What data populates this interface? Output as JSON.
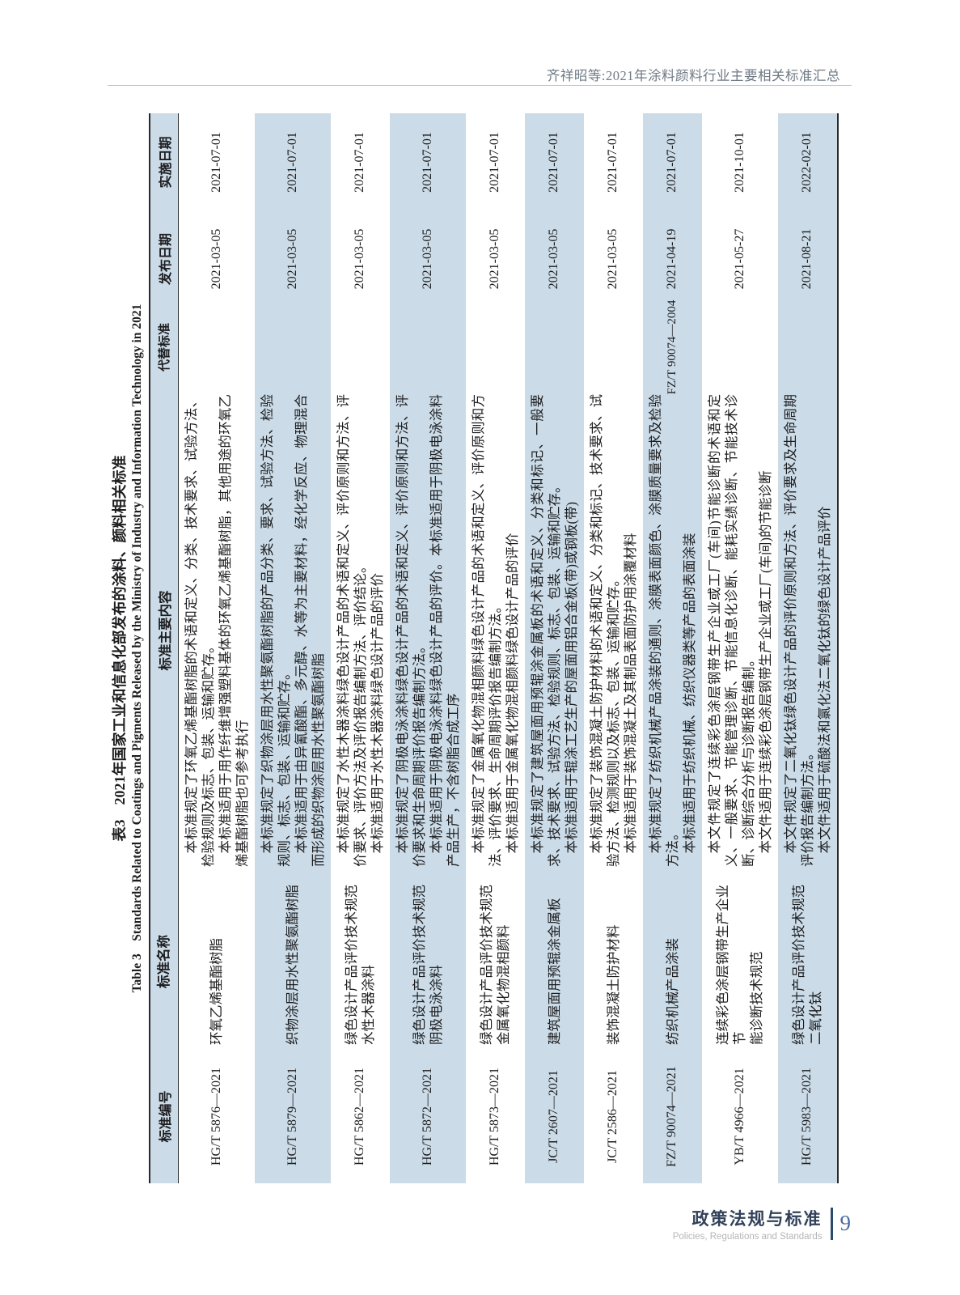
{
  "running_head": "齐祥昭等:2021年涂料颜料行业主要相关标准汇总",
  "table": {
    "title_cn": "表3　2021年国家工业和信息化部发布的涂料、颜料相关标准",
    "title_en": "Table 3　Standards Related to Coatings and Pigments Released by the Ministry of Industry and Information Technology in 2021",
    "columns": [
      "标准编号",
      "标准名称",
      "标准主要内容",
      "代替标准",
      "发布日期",
      "实施日期"
    ],
    "rows": [
      {
        "code": "HG/T 5876—2021",
        "name": "环氧乙烯基酯树脂",
        "p1": "本标准规定了环氧乙烯基酯树脂的术语和定义、分类、技术要求、试验方法、检验规则及标志、包装、运输和贮存。",
        "p2": "本标准适用于用作纤维增强塑料基体的环氧乙烯基酯树脂，其他用途的环氧乙烯基酯树脂也可参考执行",
        "replaces": "",
        "issued": "2021-03-05",
        "implemented": "2021-07-01"
      },
      {
        "code": "HG/T 5879—2021",
        "name": "织物涂层用水性聚氨酯树脂",
        "p1": "本标准规定了织物涂层用水性聚氨酯树脂的产品分类、要求、试验方法、检验规则、标志、包装、运输和贮存。",
        "p2": "本标准适用于由异氰酸酯、多元醇、水等为主要材料，经化学反应、物理混合而形成的织物涂层用水性聚氨酯树脂",
        "replaces": "",
        "issued": "2021-03-05",
        "implemented": "2021-07-01"
      },
      {
        "code": "HG/T 5862—2021",
        "name": "绿色设计产品评价技术规范\n水性木器涂料",
        "p1": "本标准规定了水性木器涂料绿色设计产品的术语和定义、评价原则和方法、评价要求、评价方法及评价报告编制方法、评价结论。",
        "p2": "本标准适用于水性木器涂料绿色设计产品的评价",
        "replaces": "",
        "issued": "2021-03-05",
        "implemented": "2021-07-01"
      },
      {
        "code": "HG/T 5872—2021",
        "name": "绿色设计产品评价技术规范\n阴极电泳涂料",
        "p1": "本标准规定了阴极电泳涂料绿色设计产品的术语和定义、评价原则和方法、评价要求和生命周期评价报告编制方法。",
        "p2": "本标准适用于阴极电泳涂料绿色设计产品的评价。本标准适用于阴极电泳涂料产品生产，不含树脂合成工序",
        "replaces": "",
        "issued": "2021-03-05",
        "implemented": "2021-07-01"
      },
      {
        "code": "HG/T 5873—2021",
        "name": "绿色设计产品评价技术规范\n金属氧化物混相颜料",
        "p1": "本标准规定了金属氧化物混相颜料绿色设计产品的术语和定义、评价原则和方法、评价要求、生命周期评价报告编制方法。",
        "p2": "本标准适用于金属氧化物混相颜料绿色设计产品的评价",
        "replaces": "",
        "issued": "2021-03-05",
        "implemented": "2021-07-01"
      },
      {
        "code": "JC/T 2607—2021",
        "name": "建筑屋面用预辊涂金属板",
        "p1": "本标准规定了建筑屋面用预辊涂金属板的术语和定义、分类和标记、一般要求、技术要求、试验方法、检验规则、标志、包装、运输和贮存。",
        "p2": "本标准适用于辊涂工艺生产的屋面用铝合金板(带)或钢板(带)",
        "replaces": "",
        "issued": "2021-03-05",
        "implemented": "2021-07-01"
      },
      {
        "code": "JC/T 2586—2021",
        "name": "装饰混凝土防护材料",
        "p1": "本标准规定了装饰混凝土防护材料的术语和定义、分类和标记、技术要求、试验方法、检测规则以及标志、包装、运输和贮存。",
        "p2": "本标准适用于装饰混凝土及其制品表面防护用涂覆材料",
        "replaces": "",
        "issued": "2021-03-05",
        "implemented": "2021-07-01"
      },
      {
        "code": "FZ/T 90074—2021",
        "name": "纺织机械产品涂装",
        "p1": "本标准规定了纺织机械产品涂装的通则、涂膜表面颜色、涂膜质量要求及检验方法。",
        "p2": "本标准适用于纺织机械、纺织仪器类等产品的表面涂装",
        "replaces": "FZ/T 90074—2004",
        "issued": "2021-04-19",
        "implemented": "2021-07-01"
      },
      {
        "code": "YB/T 4966—2021",
        "name": "连续彩色涂层钢带生产企业节\n能诊断技术规范",
        "p1": "本文件规定了连续彩色涂层钢带生产企业或工厂(车间)节能诊断的术语和定义、一般要求、节能管理诊断、节能信息化诊断、能耗实绩诊断、节能技术诊断、诊断综合分析与诊断报告编制。",
        "p2": "本文件适用于连续彩色涂层钢带生产企业或工厂(车间)的节能诊断",
        "replaces": "",
        "issued": "2021-05-27",
        "implemented": "2021-10-01"
      },
      {
        "code": "HG/T 5983—2021",
        "name": "绿色设计产品评价技术规范\n二氧化钛",
        "p1": "本文件规定了二氧化钛绿色设计产品的评价原则和方法、评价要求及生命周期评价报告编制方法。",
        "p2": "本文件适用于硫酸法和氯化法二氧化钛的绿色设计产品评价",
        "replaces": "",
        "issued": "2021-08-21",
        "implemented": "2022-02-01"
      }
    ]
  },
  "footer": {
    "section_cn": "政策法规与标准",
    "section_en": "Policies, Regulations and Standards",
    "page_number": "9"
  },
  "colors": {
    "stripe": "#cbdce8",
    "section_dark": "#32415a",
    "page_number_blue": "#4a6da1"
  }
}
